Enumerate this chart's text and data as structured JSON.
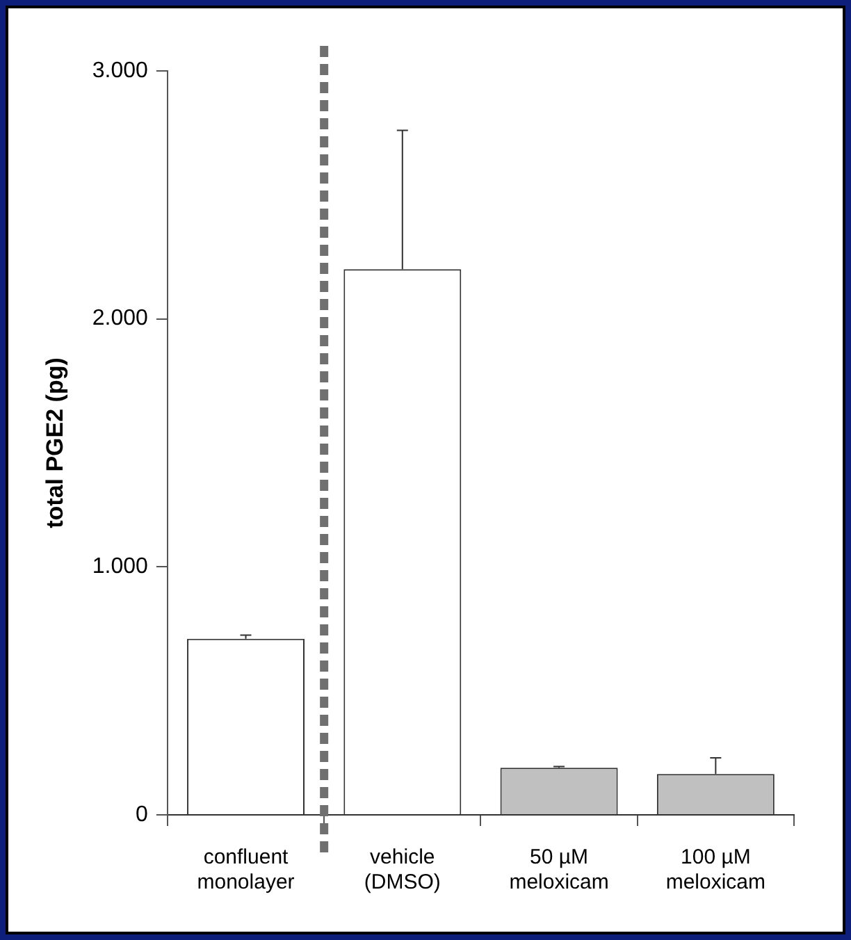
{
  "chart_data": {
    "type": "bar",
    "ylabel": "total PGE2 (pg)",
    "categories": [
      "confluent\nmonolayer",
      "vehicle\n(DMSO)",
      "50 µM\nmeloxicam",
      "100 µM\nmeloxicam"
    ],
    "values": [
      710,
      2200,
      190,
      165
    ],
    "colors": [
      "#ffffff",
      "#ffffff",
      "#c0c0c0",
      "#c0c0c0"
    ],
    "errors": [
      [
        710,
        725
      ],
      [
        2200,
        2760
      ],
      [
        190,
        195
      ],
      [
        165,
        230
      ]
    ],
    "ylim": [
      0,
      3000
    ],
    "yticks": [
      0,
      {
        "value": 1000,
        "label": "1.000"
      },
      {
        "value": 2000,
        "label": "2.000"
      },
      {
        "value": 3000,
        "label": "3.000"
      }
    ],
    "grid": false,
    "legend": false
  }
}
